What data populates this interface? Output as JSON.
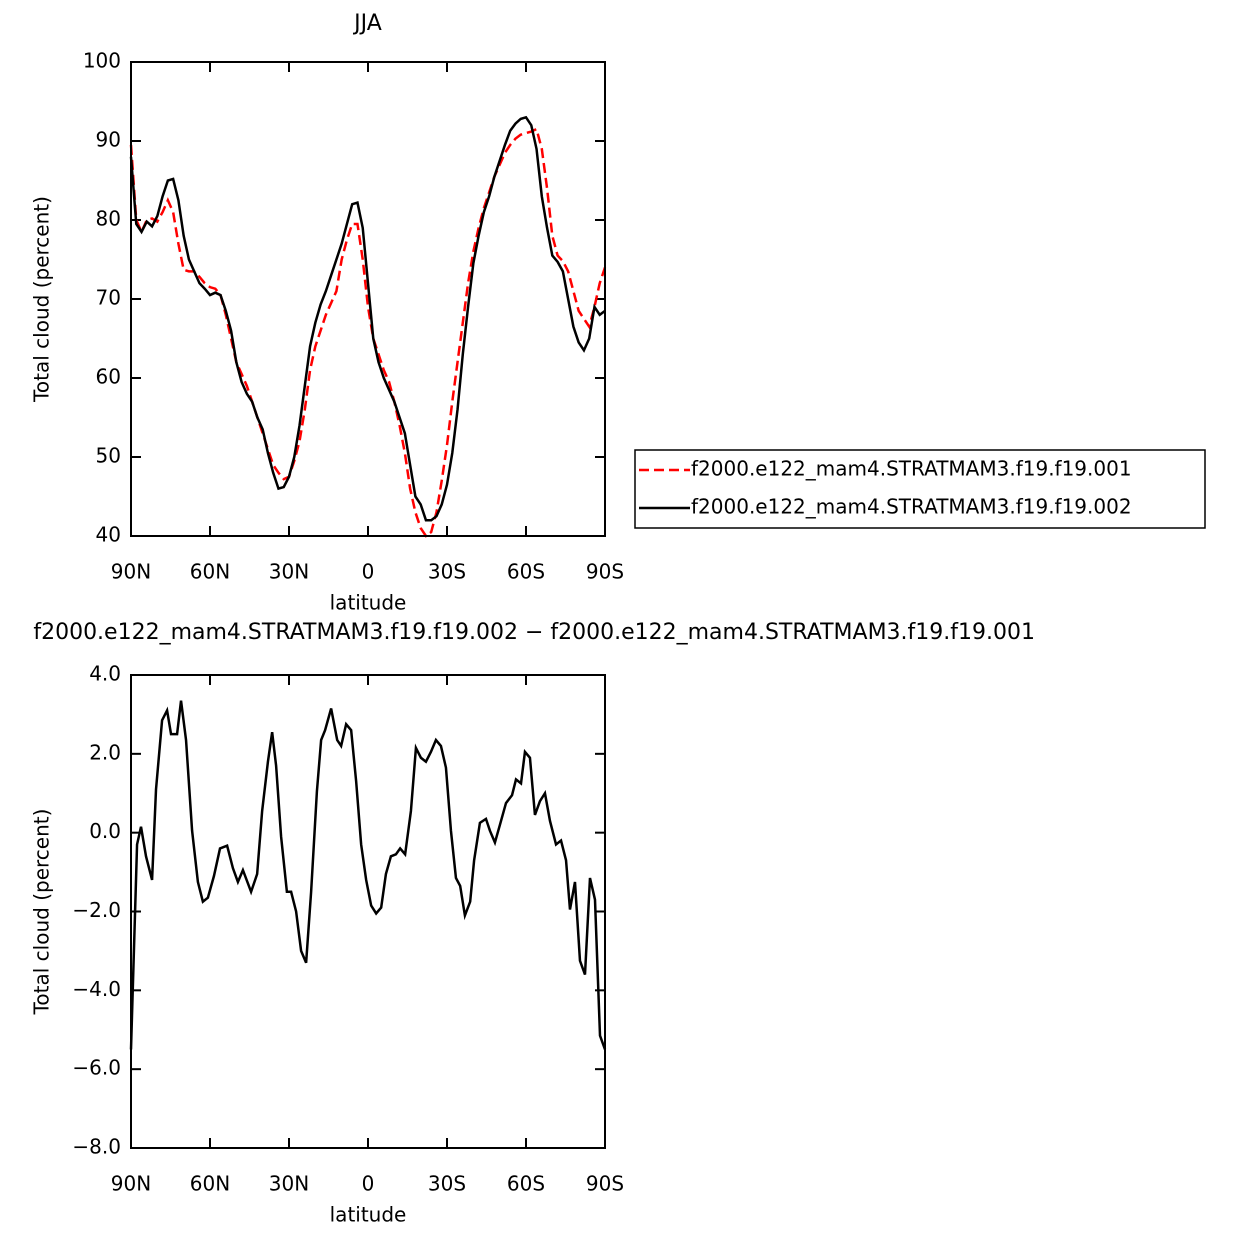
{
  "chart_data": [
    {
      "type": "line",
      "title": "JJA",
      "xlabel": "latitude",
      "ylabel": "Total cloud (percent)",
      "x": [
        90,
        88,
        86,
        84,
        82,
        80,
        78,
        76,
        74,
        72,
        70,
        68,
        66,
        64,
        62,
        60,
        58,
        56,
        54,
        52,
        50,
        48,
        46,
        44,
        42,
        40,
        38,
        36,
        34,
        32,
        30,
        28,
        26,
        24,
        22,
        20,
        18,
        16,
        14,
        12,
        10,
        8,
        6,
        4,
        2,
        0,
        -2,
        -4,
        -6,
        -8,
        -10,
        -12,
        -14,
        -16,
        -18,
        -20,
        -22,
        -24,
        -26,
        -28,
        -30,
        -32,
        -34,
        -36,
        -38,
        -40,
        -42,
        -44,
        -46,
        -48,
        -50,
        -52,
        -54,
        -56,
        -58,
        -60,
        -62,
        -64,
        -66,
        -68,
        -70,
        -72,
        -74,
        -76,
        -78,
        -80,
        -82,
        -84,
        -86,
        -88,
        -90
      ],
      "series": [
        {
          "name": "f2000.e122_mam4.STRATMAM3.f19.f19.001",
          "color": "#ff0000",
          "dash": "dashed",
          "values": [
            89.5,
            80,
            78.5,
            80,
            80.2,
            79.8,
            81,
            82.5,
            81,
            77,
            73.7,
            73.5,
            73.5,
            72.8,
            72,
            71.5,
            71.3,
            70.5,
            68,
            65,
            62,
            60.5,
            59,
            57,
            55,
            53,
            51,
            49,
            48,
            47.2,
            47.5,
            49.5,
            52,
            56,
            61,
            64,
            66,
            68,
            69.5,
            71,
            75,
            77.5,
            79.5,
            79.5,
            75,
            69,
            65,
            63,
            61,
            59.5,
            57,
            54,
            50.5,
            46,
            43,
            41,
            40,
            40.5,
            43,
            47,
            51.5,
            57,
            62,
            67,
            72,
            76,
            79,
            81.5,
            83.5,
            85.5,
            87,
            88.5,
            89.5,
            90.3,
            90.8,
            91,
            91.2,
            91.5,
            89,
            84,
            78,
            75.5,
            74.8,
            73.5,
            71,
            68.5,
            67.5,
            66.5,
            69,
            72,
            74
          ]
        },
        {
          "name": "f2000.e122_mam4.STRATMAM3.f19.f19.002",
          "color": "#000000",
          "dash": "solid",
          "values": [
            88,
            79.5,
            78.5,
            79.8,
            79.2,
            80.5,
            83,
            85,
            85.2,
            82.5,
            78,
            75,
            73.5,
            72,
            71.3,
            70.5,
            70.8,
            70.5,
            68.5,
            66,
            62,
            59.5,
            58,
            57,
            55,
            53.5,
            50.5,
            48,
            46,
            46.2,
            47.5,
            50,
            54,
            59,
            64,
            67,
            69.3,
            71,
            73,
            75,
            77,
            79.5,
            82,
            82.2,
            79,
            72,
            65,
            62,
            60,
            58.5,
            57,
            55,
            53,
            49,
            45,
            44,
            42,
            42,
            42.5,
            44,
            46.5,
            50.5,
            56,
            63,
            69,
            74.5,
            78,
            81,
            83,
            85.5,
            87.5,
            89.5,
            91.3,
            92.2,
            92.8,
            93,
            92,
            89,
            83,
            79,
            75.5,
            74.7,
            73.5,
            70,
            66.5,
            64.5,
            63.5,
            65,
            69,
            68,
            68.5
          ]
        }
      ],
      "xlim": [
        90,
        -90
      ],
      "xticks": [
        {
          "value": 90,
          "label": "90N"
        },
        {
          "value": 60,
          "label": "60N"
        },
        {
          "value": 30,
          "label": "30N"
        },
        0,
        {
          "value": -30,
          "label": "30S"
        },
        {
          "value": -60,
          "label": "60S"
        },
        {
          "value": -90,
          "label": "90S"
        }
      ],
      "ylim": [
        40,
        100
      ],
      "yticks": [
        40,
        50,
        60,
        70,
        80,
        90,
        100
      ],
      "legend": "right"
    },
    {
      "type": "line",
      "title": "f2000.e122_mam4.STRATMAM3.f19.f19.002 − f2000.e122_mam4.STRATMAM3.f19.f19.001",
      "xlabel": "latitude",
      "ylabel": "Total cloud (percent)",
      "x": [
        90,
        87.7,
        86.2,
        84.3,
        82,
        80.5,
        78.2,
        76.3,
        74.8,
        72.5,
        71,
        69.1,
        66.8,
        64.6,
        62.7,
        60.8,
        58.5,
        56.2,
        53.5,
        51.3,
        49.4,
        47.5,
        44.4,
        42.1,
        40.2,
        38,
        36.4,
        34.9,
        33,
        30.8,
        29.2,
        27.3,
        25.4,
        23.5,
        21.6,
        19.4,
        17.8,
        16.3,
        14,
        11.7,
        10.2,
        8.3,
        6.4,
        4.5,
        2.6,
        0.7,
        -1.2,
        -3.1,
        -5,
        -6.8,
        -8.7,
        -10.6,
        -12.2,
        -14.1,
        -16.3,
        -18.2,
        -20.1,
        -22,
        -23.9,
        -25.8,
        -27.7,
        -29.6,
        -31.5,
        -33.4,
        -35,
        -36.8,
        -38.8,
        -40.3,
        -42.5,
        -44.8,
        -46.3,
        -48.2,
        -50.1,
        -52.4,
        -54.7,
        -56.2,
        -58.1,
        -59.6,
        -61.5,
        -63.4,
        -65.3,
        -67.2,
        -69.1,
        -71.4,
        -73.3,
        -75.2,
        -76.7,
        -78.6,
        -80.5,
        -82.4,
        -84.3,
        -86.2,
        -88.1,
        -90
      ],
      "values": [
        -5.5,
        -0.3,
        0.15,
        -0.6,
        -1.2,
        1.1,
        2.85,
        3.1,
        2.5,
        2.5,
        3.35,
        2.35,
        0.05,
        -1.25,
        -1.75,
        -1.65,
        -1.1,
        -0.4,
        -0.33,
        -0.9,
        -1.25,
        -0.95,
        -1.5,
        -1.05,
        0.55,
        1.8,
        2.55,
        1.7,
        -0.1,
        -1.5,
        -1.5,
        -2,
        -3,
        -3.3,
        -1.5,
        1.05,
        2.35,
        2.6,
        3.15,
        2.35,
        2.2,
        2.75,
        2.6,
        1.3,
        -0.3,
        -1.2,
        -1.85,
        -2.05,
        -1.9,
        -1.05,
        -0.6,
        -0.55,
        -0.4,
        -0.55,
        0.55,
        2.15,
        1.9,
        1.8,
        2.05,
        2.35,
        2.2,
        1.65,
        0.05,
        -1.15,
        -1.35,
        -2.1,
        -1.75,
        -0.7,
        0.25,
        0.35,
        0.05,
        -0.25,
        0.2,
        0.75,
        0.95,
        1.35,
        1.25,
        2.05,
        1.9,
        0.45,
        0.8,
        1,
        0.3,
        -0.3,
        -0.2,
        -0.7,
        -1.95,
        -1.25,
        -3.25,
        -3.6,
        -1.15,
        -1.7,
        -5.15,
        -5.5
      ],
      "color": "#000000",
      "xlim": [
        90,
        -90
      ],
      "xticks": [
        {
          "value": 90,
          "label": "90N"
        },
        {
          "value": 60,
          "label": "60N"
        },
        {
          "value": 30,
          "label": "30N"
        },
        0,
        {
          "value": -30,
          "label": "30S"
        },
        {
          "value": -60,
          "label": "60S"
        },
        {
          "value": -90,
          "label": "90S"
        }
      ],
      "ylim": [
        -8,
        4
      ],
      "yticks": [
        {
          "value": -8,
          "label": "−8.0"
        },
        {
          "value": -6,
          "label": "−6.0"
        },
        {
          "value": -4,
          "label": "−4.0"
        },
        {
          "value": -2,
          "label": "−2.0"
        },
        {
          "value": 0,
          "label": "0.0"
        },
        {
          "value": 2,
          "label": "2.0"
        },
        {
          "value": 4,
          "label": "4.0"
        }
      ]
    }
  ]
}
